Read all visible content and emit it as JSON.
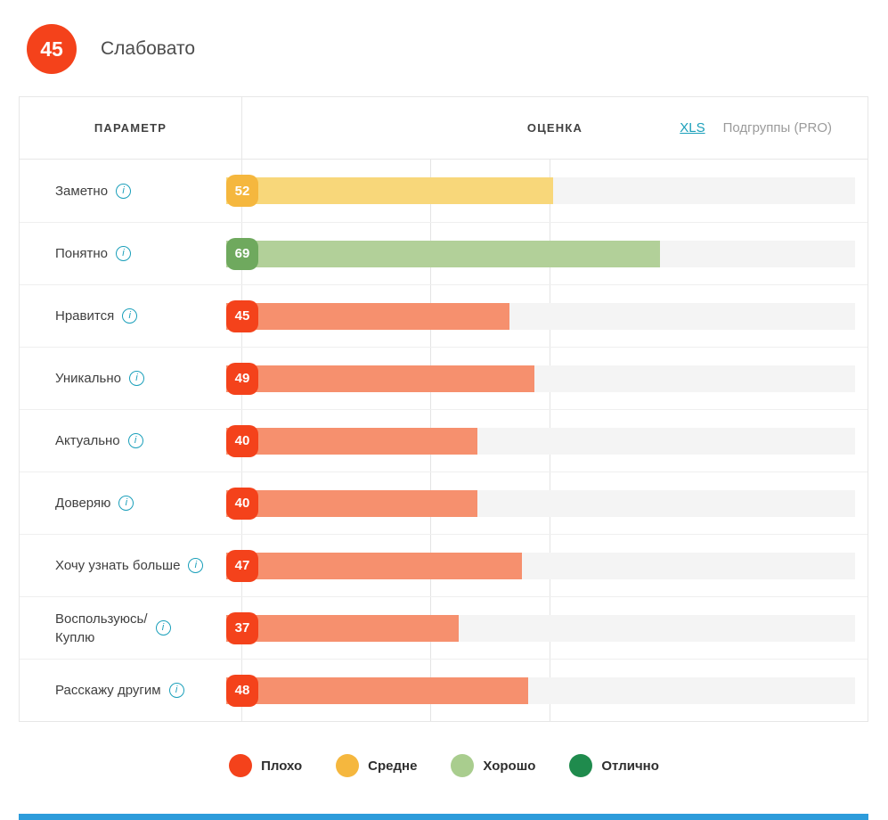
{
  "header": {
    "score": 45,
    "label": "Слабовато"
  },
  "table": {
    "col_parameter": "ПАРАМЕТР",
    "col_score": "ОЦЕНКА",
    "xls_label": "XLS",
    "subgroups_label": "Подгруппы (PRO)"
  },
  "icons": {
    "info": "i"
  },
  "palette": {
    "bad": {
      "badge": "#f4421b",
      "bar": "#f6906e"
    },
    "medium": {
      "badge": "#f5b73e",
      "bar": "#f8d77a"
    },
    "good": {
      "badge": "#6fa95e",
      "bar": "#b2d099"
    },
    "excellent": {
      "badge": "#1f8b4d",
      "bar": "#1f8b4d"
    },
    "accent_teal": "#1a9fba",
    "footer_bar": "#2d9cdb",
    "track": "#f4f4f4"
  },
  "rows": [
    {
      "label": "Заметно",
      "value": 52,
      "level": "medium"
    },
    {
      "label": "Понятно",
      "value": 69,
      "level": "good"
    },
    {
      "label": "Нравится",
      "value": 45,
      "level": "bad"
    },
    {
      "label": "Уникально",
      "value": 49,
      "level": "bad"
    },
    {
      "label": "Актуально",
      "value": 40,
      "level": "bad"
    },
    {
      "label": "Доверяю",
      "value": 40,
      "level": "bad"
    },
    {
      "label": "Хочу узнать больше",
      "value": 47,
      "level": "bad"
    },
    {
      "label": "Воспользуюсь/\nКуплю",
      "value": 37,
      "level": "bad"
    },
    {
      "label": "Расскажу другим",
      "value": 48,
      "level": "bad"
    }
  ],
  "legend": [
    {
      "label": "Плохо",
      "color": "#f4421b"
    },
    {
      "label": "Средне",
      "color": "#f5b73e"
    },
    {
      "label": "Хорошо",
      "color": "#a9cd8e"
    },
    {
      "label": "Отлично",
      "color": "#1f8b4d"
    }
  ],
  "chart_data": {
    "type": "bar",
    "orientation": "horizontal",
    "title": "Слабовато",
    "overall_score": 45,
    "categories": [
      "Заметно",
      "Понятно",
      "Нравится",
      "Уникально",
      "Актуально",
      "Доверяю",
      "Хочу узнать больше",
      "Воспользуюсь/Куплю",
      "Расскажу другим"
    ],
    "values": [
      52,
      69,
      45,
      49,
      40,
      40,
      47,
      37,
      48
    ],
    "value_levels": [
      "Средне",
      "Хорошо",
      "Плохо",
      "Плохо",
      "Плохо",
      "Плохо",
      "Плохо",
      "Плохо",
      "Плохо"
    ],
    "xlim": [
      0,
      100
    ],
    "xlabel": "ОЦЕНКА",
    "ylabel": "ПАРАМЕТР",
    "legend": [
      "Плохо",
      "Средне",
      "Хорошо",
      "Отлично"
    ],
    "legend_position": "bottom",
    "grid": "off"
  }
}
